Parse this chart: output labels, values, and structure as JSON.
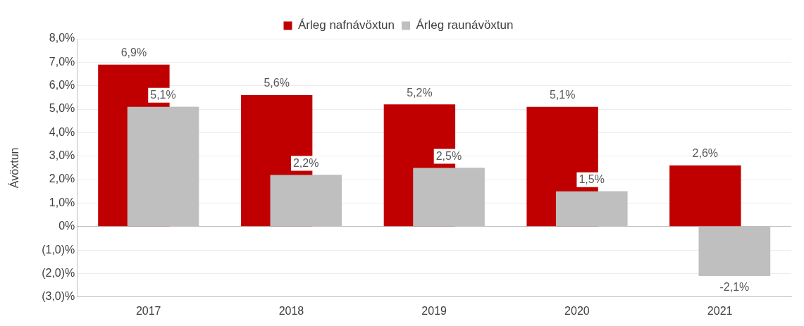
{
  "chart_data": {
    "type": "bar",
    "ylabel": "Ávöxtun",
    "categories": [
      "2017",
      "2018",
      "2019",
      "2020",
      "2021"
    ],
    "series": [
      {
        "name": "Árleg nafnávöxtun",
        "color": "#c00000",
        "values": [
          6.9,
          5.6,
          5.2,
          5.1,
          2.6
        ],
        "value_labels": [
          "6,9%",
          "5,6%",
          "5,2%",
          "5,1%",
          "2,6%"
        ]
      },
      {
        "name": "Árleg raunávöxtun",
        "color": "#bfbfbf",
        "values": [
          5.1,
          2.2,
          2.5,
          1.5,
          -2.1
        ],
        "value_labels": [
          "5,1%",
          "2,2%",
          "2,5%",
          "1,5%",
          "-2,1%"
        ]
      }
    ],
    "ylim": [
      -3,
      8
    ],
    "yticks": [
      {
        "value": -3,
        "label": "(3,0)%"
      },
      {
        "value": -2,
        "label": "(2,0)%"
      },
      {
        "value": -1,
        "label": "(1,0)%"
      },
      {
        "value": 0,
        "label": "0%"
      },
      {
        "value": 1,
        "label": "1,0%"
      },
      {
        "value": 2,
        "label": "2,0%"
      },
      {
        "value": 3,
        "label": "3,0%"
      },
      {
        "value": 4,
        "label": "4,0%"
      },
      {
        "value": 5,
        "label": "5,0%"
      },
      {
        "value": 6,
        "label": "6,0%"
      },
      {
        "value": 7,
        "label": "7,0%"
      },
      {
        "value": 8,
        "label": "8,0%"
      }
    ],
    "grid": "y",
    "legend": "top"
  }
}
